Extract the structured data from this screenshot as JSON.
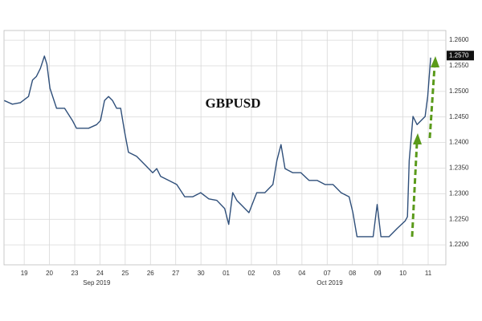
{
  "chart_data": {
    "type": "line",
    "title": "GBPUSD",
    "series": [
      {
        "color": "#2f4f7a",
        "x": [
          -0.29,
          0.03,
          0.35,
          0.67,
          0.83,
          0.98,
          1.14,
          1.3,
          1.4,
          1.52,
          1.78,
          2.1,
          2.41,
          2.57,
          2.73,
          3.05,
          3.37,
          3.52,
          3.68,
          3.84,
          4.0,
          4.16,
          4.32,
          4.48,
          4.63,
          4.95,
          5.27,
          5.59,
          5.75,
          5.9,
          6.22,
          6.54,
          6.86,
          7.17,
          7.49,
          7.81,
          8.13,
          8.44,
          8.6,
          8.76,
          8.92,
          9.08,
          9.4,
          9.71,
          10.03,
          10.35,
          10.51,
          10.67,
          10.83,
          11.14,
          11.46,
          11.78,
          12.1,
          12.41,
          12.73,
          13.05,
          13.37,
          13.52,
          13.68,
          14.0,
          14.32,
          14.48,
          14.63,
          14.95,
          15.27,
          15.59,
          15.68,
          15.75,
          15.9,
          16.06,
          16.38,
          16.48,
          16.6
        ],
        "values": [
          1.2482,
          1.2475,
          1.2478,
          1.249,
          1.2522,
          1.2529,
          1.2545,
          1.2569,
          1.2553,
          1.2506,
          1.2467,
          1.2467,
          1.2443,
          1.2428,
          1.2428,
          1.2428,
          1.2435,
          1.2443,
          1.2482,
          1.249,
          1.2482,
          1.2467,
          1.2467,
          1.242,
          1.2381,
          1.2373,
          1.2357,
          1.2341,
          1.2349,
          1.2334,
          1.2326,
          1.2318,
          1.2294,
          1.2294,
          1.2302,
          1.229,
          1.2287,
          1.2271,
          1.224,
          1.2302,
          1.2287,
          1.2279,
          1.2263,
          1.2302,
          1.2302,
          1.2318,
          1.2365,
          1.2396,
          1.2349,
          1.2341,
          1.2341,
          1.2326,
          1.2326,
          1.2318,
          1.2318,
          1.2302,
          1.2294,
          1.2263,
          1.2216,
          1.2216,
          1.2216,
          1.2279,
          1.2216,
          1.2216,
          1.2232,
          1.2247,
          1.2255,
          1.2365,
          1.2451,
          1.2435,
          1.2451,
          1.249,
          1.2566
        ]
      }
    ],
    "last_price": {
      "value": 1.257,
      "label": "1.2570"
    },
    "xlim": [
      -0.3,
      17.2
    ],
    "xticks": [
      {
        "value": 0.5,
        "label": "19"
      },
      {
        "value": 1.5,
        "label": "20"
      },
      {
        "value": 2.5,
        "label": "23"
      },
      {
        "value": 3.5,
        "label": "24"
      },
      {
        "value": 4.5,
        "label": "25"
      },
      {
        "value": 5.5,
        "label": "26"
      },
      {
        "value": 6.5,
        "label": "27"
      },
      {
        "value": 7.5,
        "label": "30"
      },
      {
        "value": 8.5,
        "label": "01"
      },
      {
        "value": 9.5,
        "label": "02"
      },
      {
        "value": 10.5,
        "label": "03"
      },
      {
        "value": 11.5,
        "label": "04"
      },
      {
        "value": 12.5,
        "label": "07"
      },
      {
        "value": 13.5,
        "label": "08"
      },
      {
        "value": 14.5,
        "label": "09"
      },
      {
        "value": 15.5,
        "label": "10"
      },
      {
        "value": 16.5,
        "label": "11"
      }
    ],
    "month_labels": [
      {
        "value": 3.37,
        "label": "Sep 2019"
      },
      {
        "value": 12.6,
        "label": "Oct 2019"
      }
    ],
    "ylim": [
      1.2161,
      1.2619
    ],
    "yticks": [
      {
        "value": 1.22,
        "label": "1.2200"
      },
      {
        "value": 1.225,
        "label": "1.2250"
      },
      {
        "value": 1.23,
        "label": "1.2300"
      },
      {
        "value": 1.235,
        "label": "1.2350"
      },
      {
        "value": 1.24,
        "label": "1.2400"
      },
      {
        "value": 1.245,
        "label": "1.2450"
      },
      {
        "value": 1.25,
        "label": "1.2500"
      },
      {
        "value": 1.255,
        "label": "1.2550"
      },
      {
        "value": 1.26,
        "label": "1.2600"
      }
    ],
    "grid": true
  }
}
